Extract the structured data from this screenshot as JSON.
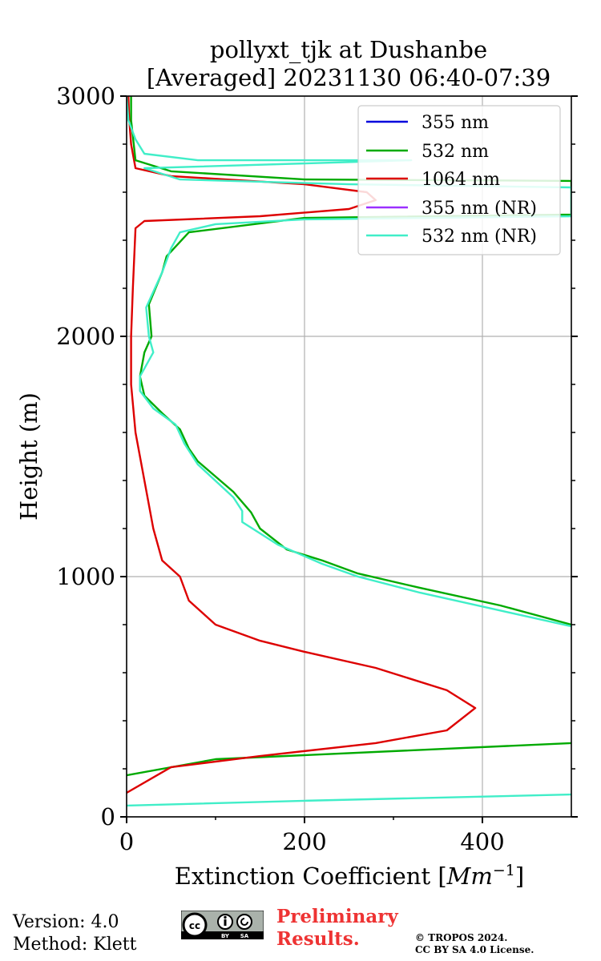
{
  "chart_data": {
    "type": "line",
    "title_line1": "pollyxt_tjk at Dushanbe",
    "title_line2": "[Averaged] 20231130 06:40-07:39",
    "xlabel": "Extinction Coefficient [",
    "xlabel_unit": "Mm",
    "xlabel_exp": "−1",
    "xlabel_end": "]",
    "ylabel": "Height (m)",
    "xlim": [
      0,
      500
    ],
    "ylim": [
      0,
      3000
    ],
    "xticks": [
      0,
      200,
      400
    ],
    "yticks": [
      0,
      1000,
      2000,
      3000
    ],
    "grid": true,
    "legend_position": "top-right",
    "series": [
      {
        "name": "355 nm",
        "color": "#0000dd",
        "points": []
      },
      {
        "name": "532 nm",
        "color": "#00aa00",
        "points": [
          [
            500,
            307
          ],
          [
            100,
            240
          ],
          [
            0,
            173
          ]
        ]
      },
      {
        "name": "1064 nm",
        "color": "#dd0000",
        "points": [
          [
            0,
            100
          ],
          [
            50,
            207
          ],
          [
            150,
            253
          ],
          [
            280,
            307
          ],
          [
            360,
            360
          ],
          [
            392,
            453
          ],
          [
            360,
            527
          ],
          [
            280,
            620
          ],
          [
            200,
            687
          ],
          [
            150,
            733
          ],
          [
            100,
            800
          ],
          [
            70,
            900
          ],
          [
            60,
            1000
          ],
          [
            40,
            1067
          ],
          [
            30,
            1200
          ],
          [
            20,
            1400
          ],
          [
            10,
            1600
          ],
          [
            5,
            1800
          ],
          [
            5,
            2000
          ],
          [
            7,
            2200
          ],
          [
            10,
            2450
          ],
          [
            20,
            2480
          ],
          [
            150,
            2500
          ],
          [
            250,
            2530
          ],
          [
            280,
            2567
          ],
          [
            270,
            2600
          ],
          [
            200,
            2633
          ],
          [
            50,
            2667
          ],
          [
            10,
            2700
          ],
          [
            5,
            2800
          ],
          [
            3,
            2900
          ],
          [
            2,
            3000
          ]
        ]
      },
      {
        "name": "355 nm (NR)",
        "color": "#9b30ff",
        "points": []
      },
      {
        "name": "532 nm (NR)",
        "color": "#40eec8",
        "points": [
          [
            500,
            93
          ],
          [
            200,
            67
          ],
          [
            0,
            47
          ]
        ]
      },
      {
        "name": "532 nm",
        "color": "#00aa00",
        "points": [
          [
            500,
            800
          ],
          [
            420,
            880
          ],
          [
            330,
            953
          ],
          [
            260,
            1013
          ],
          [
            220,
            1067
          ],
          [
            180,
            1113
          ],
          [
            150,
            1200
          ],
          [
            140,
            1267
          ],
          [
            120,
            1353
          ],
          [
            80,
            1480
          ],
          [
            70,
            1533
          ],
          [
            60,
            1613
          ],
          [
            40,
            1680
          ],
          [
            20,
            1753
          ],
          [
            15,
            1833
          ],
          [
            20,
            1933
          ],
          [
            28,
            2000
          ],
          [
            25,
            2133
          ],
          [
            40,
            2267
          ],
          [
            45,
            2333
          ],
          [
            70,
            2433
          ],
          [
            200,
            2493
          ],
          [
            500,
            2507
          ],
          [
            500,
            2647
          ],
          [
            200,
            2653
          ],
          [
            50,
            2687
          ],
          [
            10,
            2733
          ],
          [
            8,
            2800
          ],
          [
            5,
            2900
          ],
          [
            5,
            3000
          ]
        ]
      },
      {
        "name": "532 nm (NR)",
        "color": "#40eec8",
        "points": [
          [
            500,
            793
          ],
          [
            330,
            933
          ],
          [
            260,
            1000
          ],
          [
            220,
            1053
          ],
          [
            170,
            1133
          ],
          [
            130,
            1227
          ],
          [
            130,
            1273
          ],
          [
            120,
            1330
          ],
          [
            80,
            1467
          ],
          [
            65,
            1553
          ],
          [
            55,
            1633
          ],
          [
            30,
            1700
          ],
          [
            15,
            1773
          ],
          [
            15,
            1833
          ],
          [
            30,
            1933
          ],
          [
            25,
            2000
          ],
          [
            22,
            2120
          ],
          [
            40,
            2267
          ],
          [
            50,
            2367
          ],
          [
            60,
            2433
          ],
          [
            100,
            2467
          ],
          [
            200,
            2487
          ],
          [
            500,
            2500
          ],
          [
            500,
            2620
          ],
          [
            250,
            2633
          ],
          [
            60,
            2653
          ],
          [
            20,
            2700
          ],
          [
            320,
            2733
          ],
          [
            80,
            2733
          ],
          [
            20,
            2760
          ],
          [
            10,
            2820
          ],
          [
            2,
            2900
          ],
          [
            0,
            3000
          ]
        ]
      }
    ]
  },
  "footer": {
    "version": "Version: 4.0",
    "method": "Method: Klett",
    "badge_cc": "cc",
    "badge_by": "BY",
    "badge_sa": "SA",
    "prelim_line1": "Preliminary",
    "prelim_line2": "Results.",
    "license_line1": "© TROPOS 2024.",
    "license_line2": "CC BY SA 4.0 License."
  }
}
